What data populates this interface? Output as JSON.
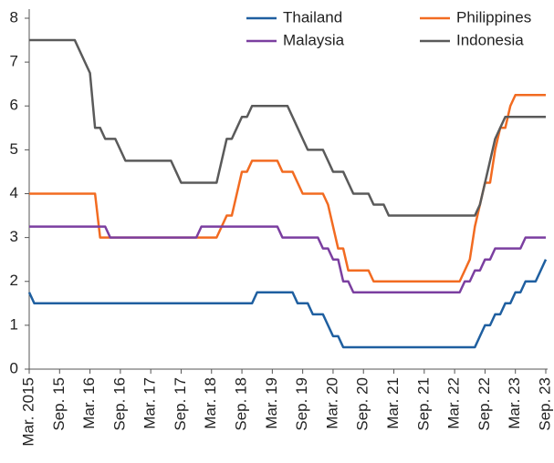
{
  "chart_data": {
    "type": "line",
    "categories": [
      "Mar. 2015",
      null,
      null,
      null,
      null,
      null,
      "Sep. 15",
      null,
      null,
      null,
      null,
      null,
      "Mar. 16",
      null,
      null,
      null,
      null,
      null,
      "Sep. 16",
      null,
      null,
      null,
      null,
      null,
      "Mar. 17",
      null,
      null,
      null,
      null,
      null,
      "Sep. 17",
      null,
      null,
      null,
      null,
      null,
      "Mar. 18",
      null,
      null,
      null,
      null,
      null,
      "Sep. 18",
      null,
      null,
      null,
      null,
      null,
      "Mar. 19",
      null,
      null,
      null,
      null,
      null,
      "Sep. 19",
      null,
      null,
      null,
      null,
      null,
      "Mar. 20",
      null,
      null,
      null,
      null,
      null,
      "Sep. 20",
      null,
      null,
      null,
      null,
      null,
      "Mar. 21",
      null,
      null,
      null,
      null,
      null,
      "Sep. 21",
      null,
      null,
      null,
      null,
      null,
      "Mar. 22",
      null,
      null,
      null,
      null,
      null,
      "Sep. 22",
      null,
      null,
      null,
      null,
      null,
      "Mar. 23",
      null,
      null,
      null,
      null,
      null,
      "Sep. 23"
    ],
    "series": [
      {
        "name": "Thailand",
        "color": "#1f5fa0",
        "values": [
          1.75,
          1.5,
          1.5,
          1.5,
          1.5,
          1.5,
          1.5,
          1.5,
          1.5,
          1.5,
          1.5,
          1.5,
          1.5,
          1.5,
          1.5,
          1.5,
          1.5,
          1.5,
          1.5,
          1.5,
          1.5,
          1.5,
          1.5,
          1.5,
          1.5,
          1.5,
          1.5,
          1.5,
          1.5,
          1.5,
          1.5,
          1.5,
          1.5,
          1.5,
          1.5,
          1.5,
          1.5,
          1.5,
          1.5,
          1.5,
          1.5,
          1.5,
          1.5,
          1.5,
          1.5,
          1.75,
          1.75,
          1.75,
          1.75,
          1.75,
          1.75,
          1.75,
          1.75,
          1.5,
          1.5,
          1.5,
          1.25,
          1.25,
          1.25,
          1.0,
          0.75,
          0.75,
          0.5,
          0.5,
          0.5,
          0.5,
          0.5,
          0.5,
          0.5,
          0.5,
          0.5,
          0.5,
          0.5,
          0.5,
          0.5,
          0.5,
          0.5,
          0.5,
          0.5,
          0.5,
          0.5,
          0.5,
          0.5,
          0.5,
          0.5,
          0.5,
          0.5,
          0.5,
          0.5,
          0.75,
          1.0,
          1.0,
          1.25,
          1.25,
          1.5,
          1.5,
          1.75,
          1.75,
          2.0,
          2.0,
          2.0,
          2.25,
          2.5
        ]
      },
      {
        "name": "Philippines",
        "color": "#f26b21",
        "values": [
          4,
          4,
          4,
          4,
          4,
          4,
          4,
          4,
          4,
          4,
          4,
          4,
          4,
          4,
          3,
          3,
          3,
          3,
          3,
          3,
          3,
          3,
          3,
          3,
          3,
          3,
          3,
          3,
          3,
          3,
          3,
          3,
          3,
          3,
          3,
          3,
          3,
          3,
          3.25,
          3.5,
          3.5,
          4,
          4.5,
          4.5,
          4.75,
          4.75,
          4.75,
          4.75,
          4.75,
          4.75,
          4.5,
          4.5,
          4.5,
          4.25,
          4,
          4,
          4,
          4,
          4,
          3.75,
          3.25,
          2.75,
          2.75,
          2.25,
          2.25,
          2.25,
          2.25,
          2.25,
          2,
          2,
          2,
          2,
          2,
          2,
          2,
          2,
          2,
          2,
          2,
          2,
          2,
          2,
          2,
          2,
          2,
          2,
          2.25,
          2.5,
          3.25,
          3.75,
          4.25,
          4.25,
          5,
          5.5,
          5.5,
          6,
          6.25,
          6.25,
          6.25,
          6.25,
          6.25,
          6.25,
          6.25
        ]
      },
      {
        "name": "Malaysia",
        "color": "#7b3fa0",
        "values": [
          3.25,
          3.25,
          3.25,
          3.25,
          3.25,
          3.25,
          3.25,
          3.25,
          3.25,
          3.25,
          3.25,
          3.25,
          3.25,
          3.25,
          3.25,
          3.25,
          3,
          3,
          3,
          3,
          3,
          3,
          3,
          3,
          3,
          3,
          3,
          3,
          3,
          3,
          3,
          3,
          3,
          3,
          3.25,
          3.25,
          3.25,
          3.25,
          3.25,
          3.25,
          3.25,
          3.25,
          3.25,
          3.25,
          3.25,
          3.25,
          3.25,
          3.25,
          3.25,
          3.25,
          3,
          3,
          3,
          3,
          3,
          3,
          3,
          3,
          2.75,
          2.75,
          2.5,
          2.5,
          2,
          2,
          1.75,
          1.75,
          1.75,
          1.75,
          1.75,
          1.75,
          1.75,
          1.75,
          1.75,
          1.75,
          1.75,
          1.75,
          1.75,
          1.75,
          1.75,
          1.75,
          1.75,
          1.75,
          1.75,
          1.75,
          1.75,
          1.75,
          2,
          2,
          2.25,
          2.25,
          2.5,
          2.5,
          2.75,
          2.75,
          2.75,
          2.75,
          2.75,
          2.75,
          3,
          3,
          3,
          3,
          3
        ]
      },
      {
        "name": "Indonesia",
        "color": "#5a5a5a",
        "values": [
          7.5,
          7.5,
          7.5,
          7.5,
          7.5,
          7.5,
          7.5,
          7.5,
          7.5,
          7.5,
          7.25,
          7,
          6.75,
          5.5,
          5.5,
          5.25,
          5.25,
          5.25,
          5,
          4.75,
          4.75,
          4.75,
          4.75,
          4.75,
          4.75,
          4.75,
          4.75,
          4.75,
          4.75,
          4.5,
          4.25,
          4.25,
          4.25,
          4.25,
          4.25,
          4.25,
          4.25,
          4.25,
          4.75,
          5.25,
          5.25,
          5.5,
          5.75,
          5.75,
          6,
          6,
          6,
          6,
          6,
          6,
          6,
          6,
          5.75,
          5.5,
          5.25,
          5,
          5,
          5,
          5,
          4.75,
          4.5,
          4.5,
          4.5,
          4.25,
          4,
          4,
          4,
          4,
          3.75,
          3.75,
          3.75,
          3.5,
          3.5,
          3.5,
          3.5,
          3.5,
          3.5,
          3.5,
          3.5,
          3.5,
          3.5,
          3.5,
          3.5,
          3.5,
          3.5,
          3.5,
          3.5,
          3.5,
          3.5,
          3.75,
          4.25,
          4.75,
          5.25,
          5.5,
          5.75,
          5.75,
          5.75,
          5.75,
          5.75,
          5.75,
          5.75,
          5.75,
          5.75
        ]
      }
    ],
    "ylim": [
      0,
      8
    ],
    "yticks": [
      0,
      1,
      2,
      3,
      4,
      5,
      6,
      7,
      8
    ],
    "grid": false
  }
}
